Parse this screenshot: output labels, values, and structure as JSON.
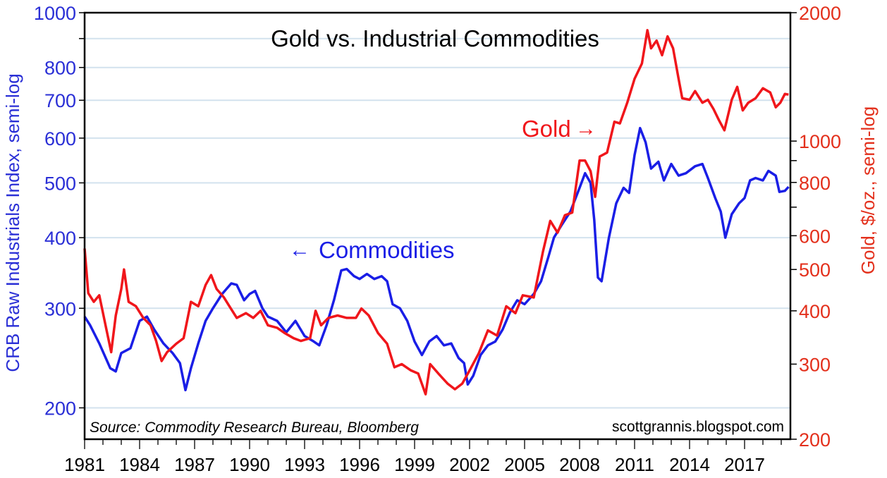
{
  "chart_data": {
    "type": "line",
    "title": "Gold vs. Industrial Commodities",
    "xlabel": "",
    "ylabel": "CRB Raw Industrials Index, semi-log",
    "ylabel_right": "Gold, $/oz., semi-log",
    "x_ticks": [
      "1981",
      "1984",
      "1987",
      "1990",
      "1993",
      "1996",
      "1999",
      "2002",
      "2005",
      "2008",
      "2011",
      "2014",
      "2017"
    ],
    "xlim": [
      1981,
      2019.5
    ],
    "y_left_ticks": [
      1000,
      800,
      700,
      600,
      500,
      400,
      300,
      200
    ],
    "y_left_scale": "log",
    "ylim_left": [
      176,
      1000
    ],
    "y_right_ticks": [
      2000,
      1000,
      800,
      600,
      500,
      400,
      300,
      200
    ],
    "y_right_scale": "log",
    "ylim_right": [
      200,
      2000
    ],
    "grid": true,
    "annotations": {
      "gold_label": "Gold",
      "gold_arrow": "→",
      "commodities_arrow": "←",
      "commodities_label": "Commodities",
      "source": "Source: Commodity Research Bureau, Bloomberg",
      "credit": "scottgrannis.blogspot.com"
    },
    "series": [
      {
        "name": "Commodities",
        "axis": "left",
        "color": "#1a1ee6",
        "points": [
          [
            1981,
            290
          ],
          [
            1981.3,
            280
          ],
          [
            1981.8,
            260
          ],
          [
            1982.4,
            235
          ],
          [
            1982.7,
            232
          ],
          [
            1983,
            250
          ],
          [
            1983.5,
            255
          ],
          [
            1984,
            285
          ],
          [
            1984.4,
            290
          ],
          [
            1984.8,
            275
          ],
          [
            1985.3,
            260
          ],
          [
            1985.8,
            250
          ],
          [
            1986.2,
            240
          ],
          [
            1986.5,
            215
          ],
          [
            1986.8,
            235
          ],
          [
            1987.2,
            260
          ],
          [
            1987.6,
            285
          ],
          [
            1988,
            300
          ],
          [
            1988.5,
            318
          ],
          [
            1989,
            332
          ],
          [
            1989.3,
            330
          ],
          [
            1989.7,
            310
          ],
          [
            1990,
            318
          ],
          [
            1990.3,
            322
          ],
          [
            1990.7,
            300
          ],
          [
            1991,
            290
          ],
          [
            1991.5,
            285
          ],
          [
            1992,
            272
          ],
          [
            1992.5,
            285
          ],
          [
            1993,
            268
          ],
          [
            1993.5,
            262
          ],
          [
            1993.8,
            258
          ],
          [
            1994.2,
            280
          ],
          [
            1994.6,
            310
          ],
          [
            1995,
            350
          ],
          [
            1995.3,
            352
          ],
          [
            1995.7,
            342
          ],
          [
            1996,
            338
          ],
          [
            1996.4,
            345
          ],
          [
            1996.8,
            338
          ],
          [
            1997.2,
            342
          ],
          [
            1997.5,
            335
          ],
          [
            1997.8,
            305
          ],
          [
            1998.2,
            300
          ],
          [
            1998.6,
            285
          ],
          [
            1999,
            262
          ],
          [
            1999.4,
            248
          ],
          [
            1999.8,
            262
          ],
          [
            2000.2,
            268
          ],
          [
            2000.6,
            258
          ],
          [
            2001,
            260
          ],
          [
            2001.4,
            245
          ],
          [
            2001.7,
            240
          ],
          [
            2001.9,
            220
          ],
          [
            2002.2,
            228
          ],
          [
            2002.6,
            248
          ],
          [
            2003,
            258
          ],
          [
            2003.4,
            262
          ],
          [
            2003.8,
            275
          ],
          [
            2004.2,
            295
          ],
          [
            2004.6,
            310
          ],
          [
            2005,
            305
          ],
          [
            2005.5,
            318
          ],
          [
            2005.9,
            335
          ],
          [
            2006.3,
            370
          ],
          [
            2006.6,
            400
          ],
          [
            2007,
            420
          ],
          [
            2007.5,
            445
          ],
          [
            2008,
            490
          ],
          [
            2008.3,
            520
          ],
          [
            2008.6,
            500
          ],
          [
            2008.8,
            430
          ],
          [
            2009,
            340
          ],
          [
            2009.2,
            335
          ],
          [
            2009.6,
            400
          ],
          [
            2010,
            460
          ],
          [
            2010.4,
            490
          ],
          [
            2010.7,
            480
          ],
          [
            2011,
            560
          ],
          [
            2011.3,
            625
          ],
          [
            2011.6,
            590
          ],
          [
            2011.9,
            530
          ],
          [
            2012.3,
            545
          ],
          [
            2012.6,
            505
          ],
          [
            2013,
            540
          ],
          [
            2013.4,
            515
          ],
          [
            2013.8,
            520
          ],
          [
            2014.3,
            535
          ],
          [
            2014.7,
            540
          ],
          [
            2015,
            510
          ],
          [
            2015.4,
            470
          ],
          [
            2015.7,
            445
          ],
          [
            2015.95,
            400
          ],
          [
            2016.3,
            440
          ],
          [
            2016.7,
            460
          ],
          [
            2017,
            470
          ],
          [
            2017.3,
            505
          ],
          [
            2017.6,
            510
          ],
          [
            2018,
            505
          ],
          [
            2018.3,
            525
          ],
          [
            2018.7,
            515
          ],
          [
            2018.9,
            482
          ],
          [
            2019.2,
            484
          ],
          [
            2019.4,
            492
          ]
        ]
      },
      {
        "name": "Gold",
        "axis": "right",
        "color": "#f0161b",
        "points": [
          [
            1981,
            560
          ],
          [
            1981.2,
            440
          ],
          [
            1981.5,
            420
          ],
          [
            1981.8,
            435
          ],
          [
            1982.2,
            360
          ],
          [
            1982.45,
            320
          ],
          [
            1982.7,
            390
          ],
          [
            1983,
            450
          ],
          [
            1983.15,
            500
          ],
          [
            1983.4,
            420
          ],
          [
            1983.8,
            410
          ],
          [
            1984.2,
            385
          ],
          [
            1984.6,
            370
          ],
          [
            1984.9,
            340
          ],
          [
            1985.2,
            305
          ],
          [
            1985.5,
            320
          ],
          [
            1986,
            335
          ],
          [
            1986.4,
            345
          ],
          [
            1986.8,
            420
          ],
          [
            1987.2,
            410
          ],
          [
            1987.6,
            460
          ],
          [
            1987.9,
            485
          ],
          [
            1988.2,
            450
          ],
          [
            1988.6,
            430
          ],
          [
            1988.9,
            410
          ],
          [
            1989.3,
            385
          ],
          [
            1989.8,
            395
          ],
          [
            1990.2,
            385
          ],
          [
            1990.6,
            400
          ],
          [
            1991,
            370
          ],
          [
            1991.5,
            365
          ],
          [
            1991.9,
            355
          ],
          [
            1992.4,
            345
          ],
          [
            1992.8,
            340
          ],
          [
            1993.3,
            345
          ],
          [
            1993.6,
            400
          ],
          [
            1993.9,
            370
          ],
          [
            1994.3,
            385
          ],
          [
            1994.8,
            390
          ],
          [
            1995.3,
            385
          ],
          [
            1995.8,
            385
          ],
          [
            1996.1,
            405
          ],
          [
            1996.5,
            390
          ],
          [
            1997,
            355
          ],
          [
            1997.5,
            335
          ],
          [
            1997.9,
            295
          ],
          [
            1998.3,
            300
          ],
          [
            1998.8,
            290
          ],
          [
            1999.2,
            285
          ],
          [
            1999.6,
            255
          ],
          [
            1999.85,
            300
          ],
          [
            2000.3,
            285
          ],
          [
            2000.8,
            270
          ],
          [
            2001.2,
            262
          ],
          [
            2001.6,
            270
          ],
          [
            2002,
            290
          ],
          [
            2002.5,
            318
          ],
          [
            2003,
            360
          ],
          [
            2003.5,
            350
          ],
          [
            2004,
            410
          ],
          [
            2004.5,
            395
          ],
          [
            2004.9,
            435
          ],
          [
            2005.5,
            430
          ],
          [
            2006,
            550
          ],
          [
            2006.4,
            650
          ],
          [
            2006.8,
            610
          ],
          [
            2007.2,
            670
          ],
          [
            2007.6,
            680
          ],
          [
            2008,
            900
          ],
          [
            2008.3,
            900
          ],
          [
            2008.6,
            850
          ],
          [
            2008.85,
            740
          ],
          [
            2009.1,
            920
          ],
          [
            2009.5,
            940
          ],
          [
            2009.9,
            1110
          ],
          [
            2010.2,
            1100
          ],
          [
            2010.6,
            1230
          ],
          [
            2011,
            1400
          ],
          [
            2011.4,
            1520
          ],
          [
            2011.7,
            1820
          ],
          [
            2011.9,
            1650
          ],
          [
            2012.2,
            1720
          ],
          [
            2012.5,
            1590
          ],
          [
            2012.8,
            1760
          ],
          [
            2013.1,
            1650
          ],
          [
            2013.4,
            1400
          ],
          [
            2013.6,
            1260
          ],
          [
            2014,
            1250
          ],
          [
            2014.3,
            1310
          ],
          [
            2014.7,
            1230
          ],
          [
            2015,
            1250
          ],
          [
            2015.3,
            1190
          ],
          [
            2015.6,
            1120
          ],
          [
            2015.9,
            1060
          ],
          [
            2016.3,
            1250
          ],
          [
            2016.6,
            1340
          ],
          [
            2016.9,
            1180
          ],
          [
            2017.2,
            1230
          ],
          [
            2017.6,
            1260
          ],
          [
            2018,
            1330
          ],
          [
            2018.4,
            1300
          ],
          [
            2018.7,
            1200
          ],
          [
            2018.95,
            1230
          ],
          [
            2019.2,
            1290
          ],
          [
            2019.4,
            1285
          ]
        ]
      }
    ]
  }
}
